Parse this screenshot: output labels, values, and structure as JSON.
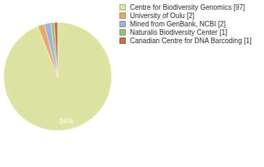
{
  "chart_data": {
    "type": "pie",
    "categories": [
      "Centre for Biodiversity Genomics [97]",
      "University of Oulu [2]",
      "Mined from GenBank, NCBI [2]",
      "Naturalis Biodiversity Center [1]",
      "Canadian Centre for DNA Barcoding [1]"
    ],
    "values": [
      94,
      2,
      2,
      1,
      1
    ],
    "value_labels": [
      "94%",
      null,
      null,
      null,
      null
    ],
    "colors": [
      "#dde3a0",
      "#e8aa6c",
      "#9fb6d6",
      "#9cc07c",
      "#d2694f"
    ],
    "legend": "right",
    "data_labels": true
  }
}
